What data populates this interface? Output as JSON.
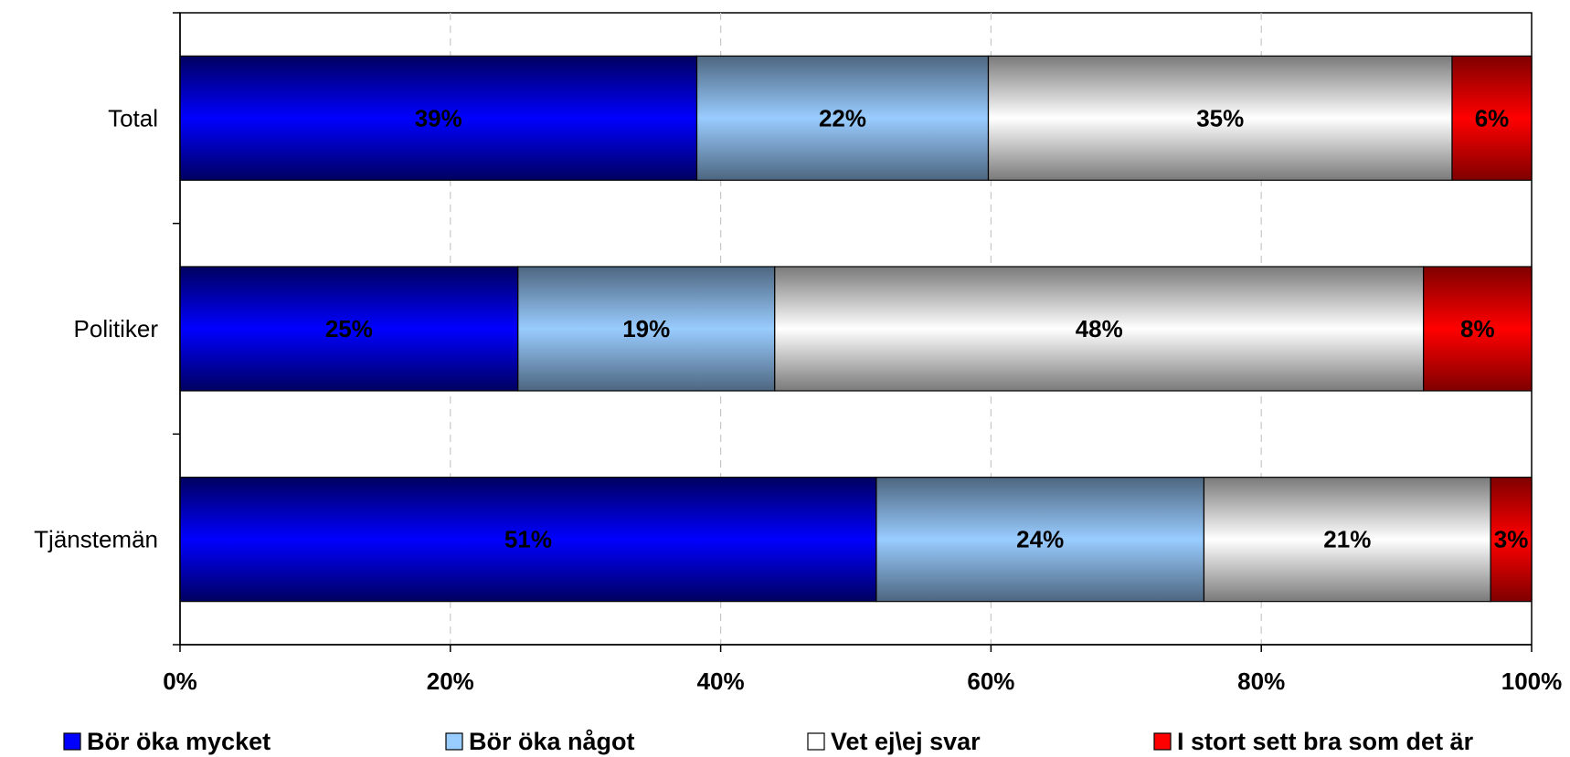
{
  "chart_data": {
    "type": "bar",
    "orientation": "horizontal",
    "stacked": "percent",
    "categories": [
      "Total",
      "Politiker",
      "Tjänstemän"
    ],
    "series": [
      {
        "name": "Bör öka mycket",
        "values": [
          39,
          25,
          51
        ],
        "labels": [
          "39%",
          "25%",
          "51%"
        ],
        "color": "#0000ff"
      },
      {
        "name": "Bör öka något",
        "values": [
          22,
          19,
          24
        ],
        "labels": [
          "22%",
          "19%",
          "24%"
        ],
        "color": "#99ccff"
      },
      {
        "name": "Vet ej\\ej svar",
        "values": [
          35,
          48,
          21
        ],
        "labels": [
          "35%",
          "48%",
          "21%"
        ],
        "color": "#ffffff"
      },
      {
        "name": "I stort sett bra som det är",
        "values": [
          6,
          8,
          3
        ],
        "labels": [
          "6%",
          "8%",
          "3%"
        ],
        "color": "#ff0000"
      }
    ],
    "xlim": [
      0,
      100
    ],
    "xticks": [
      "0%",
      "20%",
      "40%",
      "60%",
      "80%",
      "100%"
    ],
    "grid": "vertical dashed",
    "legend": "bottom"
  }
}
